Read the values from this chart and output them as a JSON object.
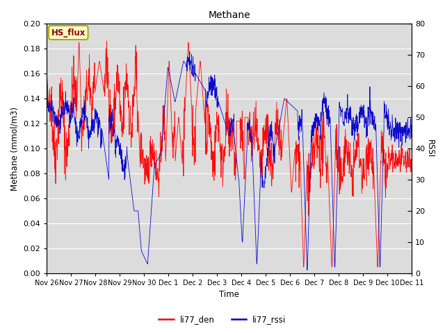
{
  "title": "Methane",
  "ylabel_left": "Methane (mmol/m3)",
  "ylabel_right": "RSSI",
  "xlabel": "Time",
  "ylim_left": [
    0.0,
    0.2
  ],
  "ylim_right": [
    0,
    80
  ],
  "bg_color": "#dcdcdc",
  "red_color": "#ff0000",
  "blue_color": "#0000cc",
  "hs_flux_label": "HS_flux",
  "legend_labels": [
    "li77_den",
    "li77_rssi"
  ],
  "x_tick_labels": [
    "Nov 26",
    "Nov 27",
    "Nov 28",
    "Nov 29",
    "Nov 30",
    "Dec 1",
    "Dec 2",
    "Dec 3",
    "Dec 4",
    "Dec 5",
    "Dec 6",
    "Dec 7",
    "Dec 8",
    "Dec 9",
    "Dec 10",
    "Dec 11"
  ],
  "figsize": [
    6.4,
    4.8
  ],
  "dpi": 100
}
